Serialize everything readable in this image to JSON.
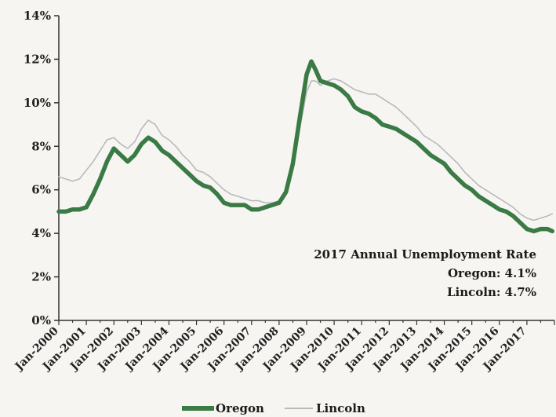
{
  "chart_data": {
    "type": "line",
    "title": "",
    "xlabel": "",
    "ylabel": "",
    "ylim": [
      0,
      14
    ],
    "y_ticks": [
      "0%",
      "2%",
      "4%",
      "6%",
      "8%",
      "10%",
      "12%",
      "14%"
    ],
    "x_ticks": [
      "Jan-2000",
      "Jan-2001",
      "Jan-2002",
      "Jan-2003",
      "Jan-2004",
      "Jan-2005",
      "Jan-2006",
      "Jan-2007",
      "Jan-2008",
      "Jan-2009",
      "Jan-2010",
      "Jan-2011",
      "Jan-2012",
      "Jan-2013",
      "Jan-2014",
      "Jan-2015",
      "Jan-2016",
      "Jan-2017"
    ],
    "x_range": [
      2000.0,
      2018.0
    ],
    "grid": false,
    "legend_position": "bottom",
    "annotation": {
      "title": "2017 Annual Unemployment Rate",
      "lines": [
        "Oregon: 4.1%",
        "Lincoln: 4.7%"
      ]
    },
    "series": [
      {
        "name": "Oregon",
        "color": "#3a7a45",
        "x": [
          2000.0,
          2000.25,
          2000.5,
          2000.75,
          2001.0,
          2001.25,
          2001.5,
          2001.75,
          2002.0,
          2002.25,
          2002.5,
          2002.75,
          2003.0,
          2003.25,
          2003.5,
          2003.75,
          2004.0,
          2004.25,
          2004.5,
          2004.75,
          2005.0,
          2005.25,
          2005.5,
          2005.75,
          2006.0,
          2006.25,
          2006.5,
          2006.75,
          2007.0,
          2007.25,
          2007.5,
          2007.75,
          2008.0,
          2008.25,
          2008.5,
          2008.75,
          2009.0,
          2009.17,
          2009.33,
          2009.5,
          2009.75,
          2010.0,
          2010.25,
          2010.5,
          2010.75,
          2011.0,
          2011.25,
          2011.5,
          2011.75,
          2012.0,
          2012.25,
          2012.5,
          2012.75,
          2013.0,
          2013.25,
          2013.5,
          2013.75,
          2014.0,
          2014.25,
          2014.5,
          2014.75,
          2015.0,
          2015.25,
          2015.5,
          2015.75,
          2016.0,
          2016.25,
          2016.5,
          2016.75,
          2017.0,
          2017.25,
          2017.5,
          2017.75,
          2017.92
        ],
        "values": [
          5.0,
          5.0,
          5.1,
          5.1,
          5.2,
          5.8,
          6.5,
          7.3,
          7.9,
          7.6,
          7.3,
          7.6,
          8.1,
          8.4,
          8.2,
          7.8,
          7.6,
          7.3,
          7.0,
          6.7,
          6.4,
          6.2,
          6.1,
          5.8,
          5.4,
          5.3,
          5.3,
          5.3,
          5.1,
          5.1,
          5.2,
          5.3,
          5.4,
          5.9,
          7.2,
          9.3,
          11.3,
          11.9,
          11.5,
          11.0,
          10.9,
          10.8,
          10.6,
          10.3,
          9.8,
          9.6,
          9.5,
          9.3,
          9.0,
          8.9,
          8.8,
          8.6,
          8.4,
          8.2,
          7.9,
          7.6,
          7.4,
          7.2,
          6.8,
          6.5,
          6.2,
          6.0,
          5.7,
          5.5,
          5.3,
          5.1,
          5.0,
          4.8,
          4.5,
          4.2,
          4.1,
          4.2,
          4.2,
          4.1
        ]
      },
      {
        "name": "Lincoln",
        "color": "#b9b9bd",
        "x": [
          2000.0,
          2000.25,
          2000.5,
          2000.75,
          2001.0,
          2001.25,
          2001.5,
          2001.75,
          2002.0,
          2002.25,
          2002.5,
          2002.75,
          2003.0,
          2003.25,
          2003.5,
          2003.75,
          2004.0,
          2004.25,
          2004.5,
          2004.75,
          2005.0,
          2005.25,
          2005.5,
          2005.75,
          2006.0,
          2006.25,
          2006.5,
          2006.75,
          2007.0,
          2007.25,
          2007.5,
          2007.75,
          2008.0,
          2008.25,
          2008.5,
          2008.75,
          2009.0,
          2009.17,
          2009.33,
          2009.5,
          2009.75,
          2010.0,
          2010.25,
          2010.5,
          2010.75,
          2011.0,
          2011.25,
          2011.5,
          2011.75,
          2012.0,
          2012.25,
          2012.5,
          2012.75,
          2013.0,
          2013.25,
          2013.5,
          2013.75,
          2014.0,
          2014.25,
          2014.5,
          2014.75,
          2015.0,
          2015.25,
          2015.5,
          2015.75,
          2016.0,
          2016.25,
          2016.5,
          2016.75,
          2017.0,
          2017.25,
          2017.5,
          2017.75,
          2017.92
        ],
        "values": [
          6.6,
          6.5,
          6.4,
          6.5,
          6.9,
          7.3,
          7.8,
          8.3,
          8.4,
          8.1,
          7.9,
          8.2,
          8.8,
          9.2,
          9.0,
          8.5,
          8.3,
          8.0,
          7.6,
          7.3,
          6.9,
          6.8,
          6.6,
          6.3,
          6.0,
          5.8,
          5.7,
          5.6,
          5.5,
          5.5,
          5.4,
          5.4,
          5.5,
          6.0,
          7.0,
          8.8,
          10.5,
          11.0,
          11.0,
          10.8,
          11.0,
          11.1,
          11.0,
          10.8,
          10.6,
          10.5,
          10.4,
          10.4,
          10.2,
          10.0,
          9.8,
          9.5,
          9.2,
          8.9,
          8.5,
          8.3,
          8.1,
          7.8,
          7.5,
          7.2,
          6.8,
          6.5,
          6.2,
          6.0,
          5.8,
          5.6,
          5.4,
          5.2,
          4.9,
          4.7,
          4.6,
          4.7,
          4.8,
          4.9
        ]
      }
    ]
  }
}
